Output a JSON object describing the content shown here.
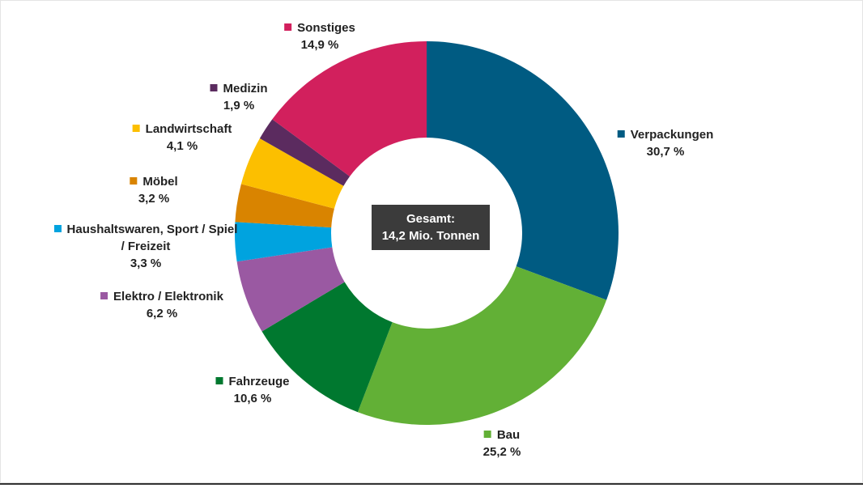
{
  "chart_data": {
    "type": "donut",
    "center_label": [
      "Gesamt:",
      "14,2 Mio. Tonnen"
    ],
    "categories": [
      "Verpackungen",
      "Bau",
      "Fahrzeuge",
      "Elektro / Elektronik",
      "Haushaltswaren, Sport / Spiel / Freizeit",
      "Möbel",
      "Landwirtschaft",
      "Medizin",
      "Sonstiges"
    ],
    "values": [
      30.7,
      25.2,
      10.6,
      6.2,
      3.3,
      3.2,
      4.1,
      1.9,
      14.9
    ],
    "value_labels": [
      "30,7 %",
      "25,2 %",
      "10,6 %",
      "6,2 %",
      "3,3 %",
      "3,2 %",
      "4,1 %",
      "1,9 %",
      "14,9 %"
    ],
    "colors": [
      "#005b82",
      "#62b036",
      "#00782f",
      "#9a59a2",
      "#00a3df",
      "#d98400",
      "#fcbf00",
      "#5b2b5f",
      "#d2205d"
    ]
  }
}
